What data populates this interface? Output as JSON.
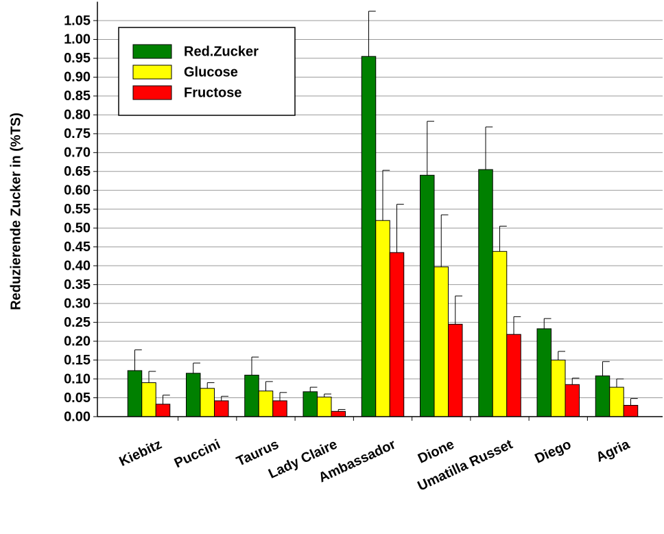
{
  "chart_data": {
    "type": "bar",
    "y_label": "Reduzierende Zucker in (%TS)",
    "categories": [
      "Kiebitz",
      "Puccini",
      "Taurus",
      "Lady Claire",
      "Ambassador",
      "Dione",
      "Umatilla Russet",
      "Diego",
      "Agria"
    ],
    "series": [
      {
        "name": "Red.Zucker",
        "color": "#008000",
        "values": [
          0.122,
          0.115,
          0.11,
          0.066,
          0.955,
          0.64,
          0.655,
          0.233,
          0.108
        ],
        "errors": [
          0.055,
          0.027,
          0.048,
          0.012,
          0.12,
          0.143,
          0.113,
          0.027,
          0.038
        ]
      },
      {
        "name": "Glucose",
        "color": "#ffff00",
        "values": [
          0.09,
          0.075,
          0.068,
          0.052,
          0.52,
          0.397,
          0.438,
          0.15,
          0.078
        ],
        "errors": [
          0.03,
          0.015,
          0.025,
          0.008,
          0.133,
          0.138,
          0.067,
          0.023,
          0.022
        ]
      },
      {
        "name": "Fructose",
        "color": "#ff0000",
        "values": [
          0.033,
          0.042,
          0.042,
          0.014,
          0.435,
          0.245,
          0.218,
          0.085,
          0.03
        ],
        "errors": [
          0.024,
          0.012,
          0.022,
          0.005,
          0.128,
          0.075,
          0.047,
          0.017,
          0.018
        ]
      }
    ],
    "ylim": [
      0,
      1.1
    ],
    "yticks": [
      {
        "value": 0,
        "label": "0.00"
      },
      {
        "value": 0.05,
        "label": "0.05"
      },
      {
        "value": 0.1,
        "label": "0.10"
      },
      {
        "value": 0.15,
        "label": "0.15"
      },
      {
        "value": 0.2,
        "label": "0.20"
      },
      {
        "value": 0.25,
        "label": "0.25"
      },
      {
        "value": 0.3,
        "label": "0.30"
      },
      {
        "value": 0.35,
        "label": "0.35"
      },
      {
        "value": 0.4,
        "label": "0.40"
      },
      {
        "value": 0.45,
        "label": "0.45"
      },
      {
        "value": 0.5,
        "label": "0.50"
      },
      {
        "value": 0.55,
        "label": "0.55"
      },
      {
        "value": 0.6,
        "label": "0.60"
      },
      {
        "value": 0.65,
        "label": "0.65"
      },
      {
        "value": 0.7,
        "label": "0.70"
      },
      {
        "value": 0.75,
        "label": "0.75"
      },
      {
        "value": 0.8,
        "label": "0.80"
      },
      {
        "value": 0.85,
        "label": "0.85"
      },
      {
        "value": 0.9,
        "label": "0.90"
      },
      {
        "value": 0.95,
        "label": "0.95"
      },
      {
        "value": 1.0,
        "label": "1.00"
      },
      {
        "value": 1.05,
        "label": "1.05"
      }
    ],
    "grid": true
  }
}
